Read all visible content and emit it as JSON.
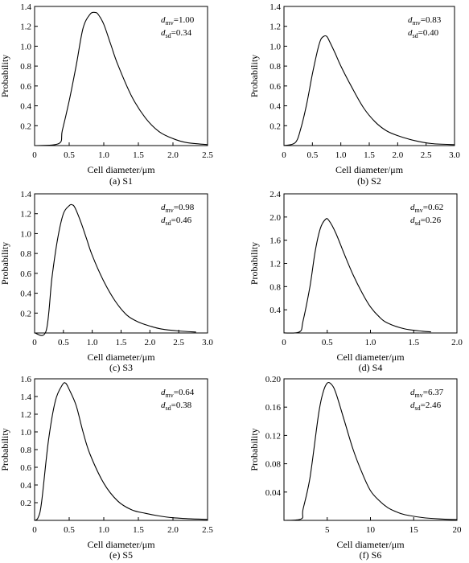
{
  "chart_data": [
    {
      "type": "line",
      "id": "S1",
      "caption": "(a) S1",
      "xlabel": "Cell diameter/μm",
      "ylabel": "Probability",
      "xlim": [
        0,
        2.5
      ],
      "ylim": [
        0,
        1.4
      ],
      "xticks": [
        "0",
        "0.5",
        "1.0",
        "1.5",
        "2.0",
        "2.5"
      ],
      "yticks": [
        "0.2",
        "0.4",
        "0.6",
        "0.8",
        "1.0",
        "1.2",
        "1.4"
      ],
      "stats": {
        "dmv_sub": "mv",
        "dmv_value": "=1.00",
        "dsd_sub": "sd",
        "dsd_value": "=0.34"
      },
      "series": [
        {
          "x": [
            0.0,
            0.35,
            0.4,
            0.5,
            0.6,
            0.7,
            0.8,
            0.87,
            0.92,
            1.0,
            1.1,
            1.2,
            1.4,
            1.6,
            1.8,
            2.0,
            2.2,
            2.5
          ],
          "y": [
            0.0,
            0.02,
            0.15,
            0.45,
            0.8,
            1.18,
            1.32,
            1.34,
            1.32,
            1.22,
            1.02,
            0.82,
            0.5,
            0.28,
            0.14,
            0.07,
            0.03,
            0.01
          ]
        }
      ]
    },
    {
      "type": "line",
      "id": "S2",
      "caption": "(b) S2",
      "xlabel": "Cell diameter/μm",
      "ylabel": "Probability",
      "xlim": [
        0,
        3.0
      ],
      "ylim": [
        0,
        1.4
      ],
      "xticks": [
        "0",
        "0.5",
        "1.0",
        "1.5",
        "2.0",
        "2.5",
        "3.0"
      ],
      "yticks": [
        "0.2",
        "0.4",
        "0.6",
        "0.8",
        "1.0",
        "1.2",
        "1.4"
      ],
      "stats": {
        "dmv_sub": "mv",
        "dmv_value": "=0.83",
        "dsd_sub": "sd",
        "dsd_value": "=0.40"
      },
      "series": [
        {
          "x": [
            0.0,
            0.2,
            0.3,
            0.4,
            0.5,
            0.6,
            0.65,
            0.7,
            0.75,
            0.8,
            0.9,
            1.0,
            1.2,
            1.4,
            1.6,
            1.8,
            2.0,
            2.3,
            2.6,
            3.0
          ],
          "y": [
            0.0,
            0.03,
            0.18,
            0.42,
            0.72,
            0.98,
            1.07,
            1.1,
            1.1,
            1.05,
            0.93,
            0.8,
            0.58,
            0.38,
            0.24,
            0.15,
            0.1,
            0.05,
            0.02,
            0.01
          ]
        }
      ]
    },
    {
      "type": "line",
      "id": "S3",
      "caption": "(c) S3",
      "xlabel": "Cell diameter/μm",
      "ylabel": "Probability",
      "xlim": [
        0,
        3.0
      ],
      "ylim": [
        0,
        1.4
      ],
      "xticks": [
        "0",
        "0.5",
        "1.0",
        "1.5",
        "2.0",
        "2.5",
        "3.0"
      ],
      "yticks": [
        "0.2",
        "0.4",
        "0.6",
        "0.8",
        "1.0",
        "1.2",
        "1.4"
      ],
      "stats": {
        "dmv_sub": "mv",
        "dmv_value": "=0.98",
        "dsd_sub": "sd",
        "dsd_value": "=0.46"
      },
      "series": [
        {
          "x": [
            0.0,
            0.2,
            0.3,
            0.4,
            0.5,
            0.6,
            0.65,
            0.7,
            0.8,
            0.9,
            1.0,
            1.2,
            1.4,
            1.6,
            1.8,
            2.0,
            2.2,
            2.5,
            2.8
          ],
          "y": [
            0.0,
            0.02,
            0.55,
            0.95,
            1.2,
            1.28,
            1.29,
            1.26,
            1.12,
            0.95,
            0.78,
            0.52,
            0.32,
            0.18,
            0.11,
            0.07,
            0.04,
            0.02,
            0.01
          ]
        }
      ]
    },
    {
      "type": "line",
      "id": "S4",
      "caption": "(d) S4",
      "xlabel": "Cell diameter/μm",
      "ylabel": "Probability",
      "xlim": [
        0,
        2.0
      ],
      "ylim": [
        0,
        2.4
      ],
      "xticks": [
        "0",
        "0.5",
        "1.0",
        "1.5",
        "2.0"
      ],
      "yticks": [
        "0.4",
        "0.8",
        "1.2",
        "1.6",
        "2.0",
        "2.4"
      ],
      "stats": {
        "dmv_sub": "mv",
        "dmv_value": "=0.62",
        "dsd_sub": "sd",
        "dsd_value": "=0.26"
      },
      "series": [
        {
          "x": [
            0.0,
            0.18,
            0.22,
            0.3,
            0.36,
            0.42,
            0.48,
            0.52,
            0.6,
            0.7,
            0.8,
            0.9,
            1.0,
            1.1,
            1.2,
            1.4,
            1.6,
            1.7
          ],
          "y": [
            0.0,
            0.02,
            0.2,
            0.8,
            1.4,
            1.8,
            1.96,
            1.94,
            1.72,
            1.35,
            1.0,
            0.7,
            0.45,
            0.28,
            0.17,
            0.07,
            0.03,
            0.02
          ]
        }
      ]
    },
    {
      "type": "line",
      "id": "S5",
      "caption": "(e) S5",
      "xlabel": "Cell diameter/μm",
      "ylabel": "Probability",
      "xlim": [
        0,
        2.5
      ],
      "ylim": [
        0,
        1.6
      ],
      "xticks": [
        "0",
        "0.5",
        "1.0",
        "1.5",
        "2.0",
        "2.5"
      ],
      "yticks": [
        "0.2",
        "0.4",
        "0.6",
        "0.8",
        "1.0",
        "1.2",
        "1.4",
        "1.6"
      ],
      "stats": {
        "dmv_sub": "mv",
        "dmv_value": "=0.64",
        "dsd_sub": "sd",
        "dsd_value": "=0.38"
      },
      "series": [
        {
          "x": [
            0.0,
            0.05,
            0.1,
            0.2,
            0.3,
            0.4,
            0.45,
            0.5,
            0.6,
            0.7,
            0.8,
            1.0,
            1.2,
            1.4,
            1.6,
            1.8,
            2.0,
            2.2,
            2.5
          ],
          "y": [
            0.0,
            0.03,
            0.2,
            0.9,
            1.35,
            1.53,
            1.55,
            1.48,
            1.3,
            1.0,
            0.75,
            0.42,
            0.22,
            0.12,
            0.08,
            0.05,
            0.03,
            0.02,
            0.01
          ]
        }
      ]
    },
    {
      "type": "line",
      "id": "S6",
      "caption": "(f) S6",
      "xlabel": "Cell diameter/μm",
      "ylabel": "Probability",
      "xlim": [
        0,
        20
      ],
      "ylim": [
        0,
        0.2
      ],
      "xticks": [
        "5",
        "10",
        "15",
        "20"
      ],
      "yticks": [
        "0.04",
        "0.08",
        "0.12",
        "0.16",
        "0.20"
      ],
      "stats": {
        "dmv_sub": "mv",
        "dmv_value": "=6.37",
        "dsd_sub": "sd",
        "dsd_value": "=2.46"
      },
      "series": [
        {
          "x": [
            0.0,
            2.0,
            2.2,
            3.0,
            4.0,
            4.5,
            5.0,
            5.5,
            6.0,
            7.0,
            8.0,
            9.0,
            10.0,
            11.0,
            12.0,
            13.0,
            14.0,
            16.0,
            18.0,
            20.0
          ],
          "y": [
            0.0,
            0.002,
            0.015,
            0.06,
            0.15,
            0.18,
            0.194,
            0.192,
            0.18,
            0.14,
            0.1,
            0.068,
            0.042,
            0.028,
            0.018,
            0.012,
            0.008,
            0.004,
            0.002,
            0.001
          ]
        }
      ]
    }
  ]
}
